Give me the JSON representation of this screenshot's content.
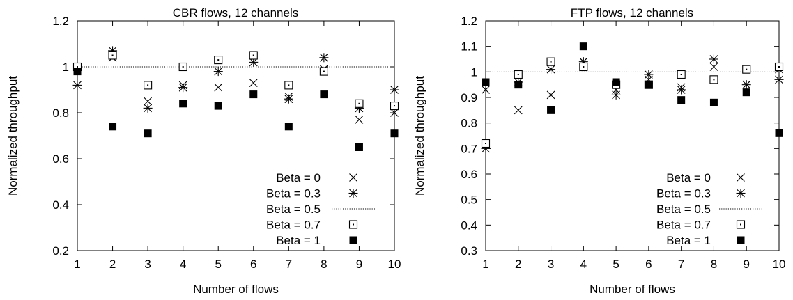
{
  "chart_data": [
    {
      "type": "scatter",
      "title": "CBR flows, 12 channels",
      "xlabel": "Number of flows",
      "ylabel": "Normalized throughput",
      "xlim": [
        1,
        10
      ],
      "ylim": [
        0.2,
        1.2
      ],
      "xticks": [
        "1",
        "2",
        "3",
        "4",
        "5",
        "6",
        "7",
        "8",
        "9",
        "10"
      ],
      "yticks": [
        "0.2",
        "0.4",
        "0.6",
        "0.8",
        "1",
        "1.2"
      ],
      "reference_line": {
        "name": "Beta = 0.5",
        "y": 1.0
      },
      "legend_position": "bottom-right",
      "grid": false,
      "x": [
        1,
        2,
        3,
        4,
        5,
        6,
        7,
        8,
        9,
        10
      ],
      "series": [
        {
          "name": "Beta = 0",
          "marker": "cross",
          "values": [
            1.0,
            1.04,
            0.85,
            0.92,
            0.91,
            0.93,
            0.87,
            0.99,
            0.77,
            0.8
          ]
        },
        {
          "name": "Beta = 0.3",
          "marker": "star",
          "values": [
            0.92,
            1.07,
            0.82,
            0.91,
            0.98,
            1.02,
            0.86,
            1.04,
            0.82,
            0.9
          ]
        },
        {
          "name": "Beta = 0.7",
          "marker": "dotted-square",
          "values": [
            1.0,
            1.05,
            0.92,
            1.0,
            1.03,
            1.05,
            0.92,
            0.98,
            0.84,
            0.83
          ]
        },
        {
          "name": "Beta = 1",
          "marker": "filled-square",
          "values": [
            0.98,
            0.74,
            0.71,
            0.84,
            0.83,
            0.88,
            0.74,
            0.88,
            0.65,
            0.71
          ]
        }
      ]
    },
    {
      "type": "scatter",
      "title": "FTP flows, 12 channels",
      "xlabel": "Number of flows",
      "ylabel": "Normalized throughput",
      "xlim": [
        1,
        10
      ],
      "ylim": [
        0.3,
        1.2
      ],
      "xticks": [
        "1",
        "2",
        "3",
        "4",
        "5",
        "6",
        "7",
        "8",
        "9",
        "10"
      ],
      "yticks": [
        "0.3",
        "0.4",
        "0.5",
        "0.6",
        "0.7",
        "0.8",
        "0.9",
        "1",
        "1.1",
        "1.2"
      ],
      "reference_line": {
        "name": "Beta = 0.5",
        "y": 1.0
      },
      "legend_position": "bottom-right",
      "grid": false,
      "x": [
        1,
        2,
        3,
        4,
        5,
        6,
        7,
        8,
        9,
        10
      ],
      "series": [
        {
          "name": "Beta = 0",
          "marker": "cross",
          "values": [
            0.93,
            0.85,
            0.91,
            1.04,
            0.93,
            0.97,
            0.94,
            1.02,
            0.95,
            1.01
          ]
        },
        {
          "name": "Beta = 0.3",
          "marker": "star",
          "values": [
            0.7,
            0.96,
            1.01,
            1.04,
            0.91,
            0.99,
            0.93,
            1.05,
            0.95,
            0.97
          ]
        },
        {
          "name": "Beta = 0.7",
          "marker": "dotted-square",
          "values": [
            0.72,
            0.99,
            1.04,
            1.02,
            0.95,
            0.95,
            0.99,
            0.97,
            1.01,
            1.02
          ]
        },
        {
          "name": "Beta = 1",
          "marker": "filled-square",
          "values": [
            0.96,
            0.95,
            0.85,
            1.1,
            0.96,
            0.95,
            0.89,
            0.88,
            0.92,
            0.76
          ]
        }
      ]
    }
  ]
}
